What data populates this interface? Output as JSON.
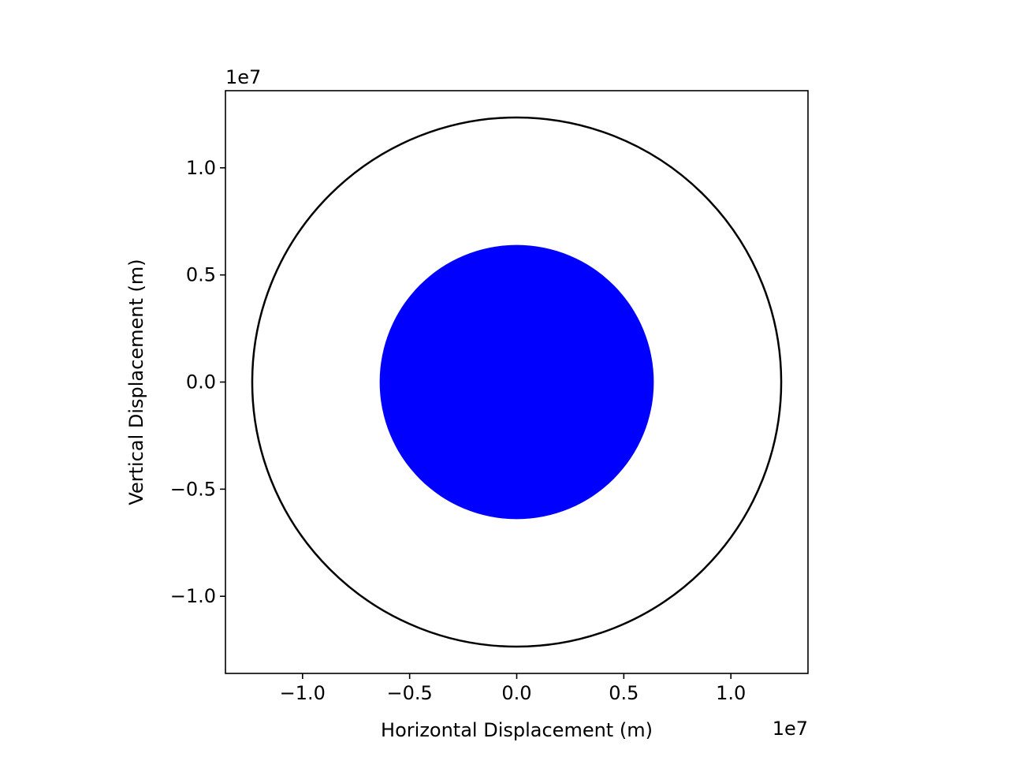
{
  "chart_data": {
    "type": "line",
    "title": "",
    "xlabel": "Horizontal Displacement (m)",
    "ylabel": "Vertical Displacement (m)",
    "x_offset_label": "1e7",
    "y_offset_label": "1e7",
    "scale_factor": 10000000,
    "xlim": [
      -13600000.0,
      13600000.0
    ],
    "ylim": [
      -13600000.0,
      13600000.0
    ],
    "x_ticks": [
      -10000000.0,
      -5000000.0,
      0,
      5000000.0,
      10000000.0
    ],
    "y_ticks": [
      -10000000.0,
      -5000000.0,
      0,
      5000000.0,
      10000000.0
    ],
    "x_tick_labels": [
      "−1.0",
      "−0.5",
      "0.0",
      "0.5",
      "1.0"
    ],
    "y_tick_labels": [
      "−1.0",
      "−0.5",
      "0.0",
      "0.5",
      "1.0"
    ],
    "grid": false,
    "aspect": "equal",
    "series": [
      {
        "kind": "filled-circle",
        "center": [
          0,
          0
        ],
        "radius": 6400000.0,
        "color": "#0000ff"
      },
      {
        "kind": "orbit-path",
        "center": [
          0,
          0
        ],
        "radius": 12350000.0,
        "color": "#000000"
      }
    ]
  }
}
